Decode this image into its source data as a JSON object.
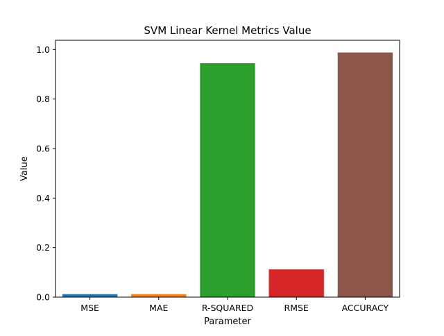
{
  "chart_data": {
    "type": "bar",
    "title": "SVM Linear Kernel Metrics Value",
    "xlabel": "Parameter",
    "ylabel": "Value",
    "categories": [
      "MSE",
      "MAE",
      "R-SQUARED",
      "RMSE",
      "ACCURACY"
    ],
    "values": [
      0.012,
      0.012,
      0.945,
      0.112,
      0.988
    ],
    "colors": [
      "#1f77b4",
      "#ff7f0e",
      "#2ca02c",
      "#d62728",
      "#8c564b"
    ],
    "ylim": [
      0,
      1.0374
    ],
    "yticks": [
      0.0,
      0.2,
      0.4,
      0.6,
      0.8,
      1.0
    ],
    "ytick_labels": [
      "0.0",
      "0.2",
      "0.4",
      "0.6",
      "0.8",
      "1.0"
    ],
    "grid": false,
    "legend": "none"
  }
}
